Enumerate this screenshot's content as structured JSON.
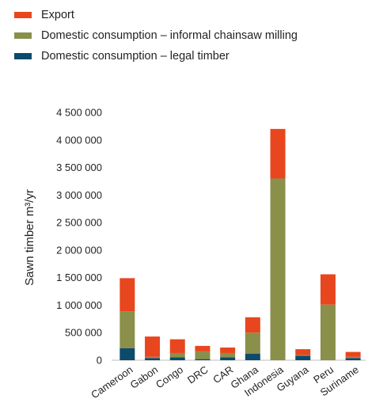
{
  "chart_data": {
    "type": "bar",
    "stacked": true,
    "categories": [
      "Cameroon",
      "Gabon",
      "Congo",
      "DRC",
      "CAR",
      "Ghana",
      "Indonesia",
      "Guyana",
      "Peru",
      "Suriname"
    ],
    "series": [
      {
        "name": "Domestic consumption – legal timber",
        "color": "#0d4a6b",
        "values": [
          220000,
          40000,
          50000,
          20000,
          50000,
          120000,
          0,
          80000,
          0,
          40000
        ]
      },
      {
        "name": "Domestic consumption – informal chainsaw milling",
        "color": "#8a8f4a",
        "values": [
          670000,
          20000,
          80000,
          140000,
          80000,
          380000,
          3300000,
          20000,
          1010000,
          20000
        ]
      },
      {
        "name": "Export",
        "color": "#e8461e",
        "values": [
          600000,
          370000,
          250000,
          100000,
          100000,
          280000,
          900000,
          100000,
          550000,
          90000
        ]
      }
    ],
    "legend_order": [
      2,
      1,
      0
    ],
    "ylabel": "Sawn timber m³/yr",
    "ylim": [
      0,
      4500000
    ],
    "y_ticks": [
      0,
      500000,
      1000000,
      1500000,
      2000000,
      2500000,
      3000000,
      3500000,
      4000000,
      4500000
    ],
    "y_tick_labels": [
      "0",
      "500 000",
      "1 000 000",
      "1 500 000",
      "2 000 000",
      "2 500 000",
      "3 000 000",
      "3 500 000",
      "4 000 000",
      "4 500 000"
    ],
    "grid": false,
    "legend_position": "top-left"
  }
}
